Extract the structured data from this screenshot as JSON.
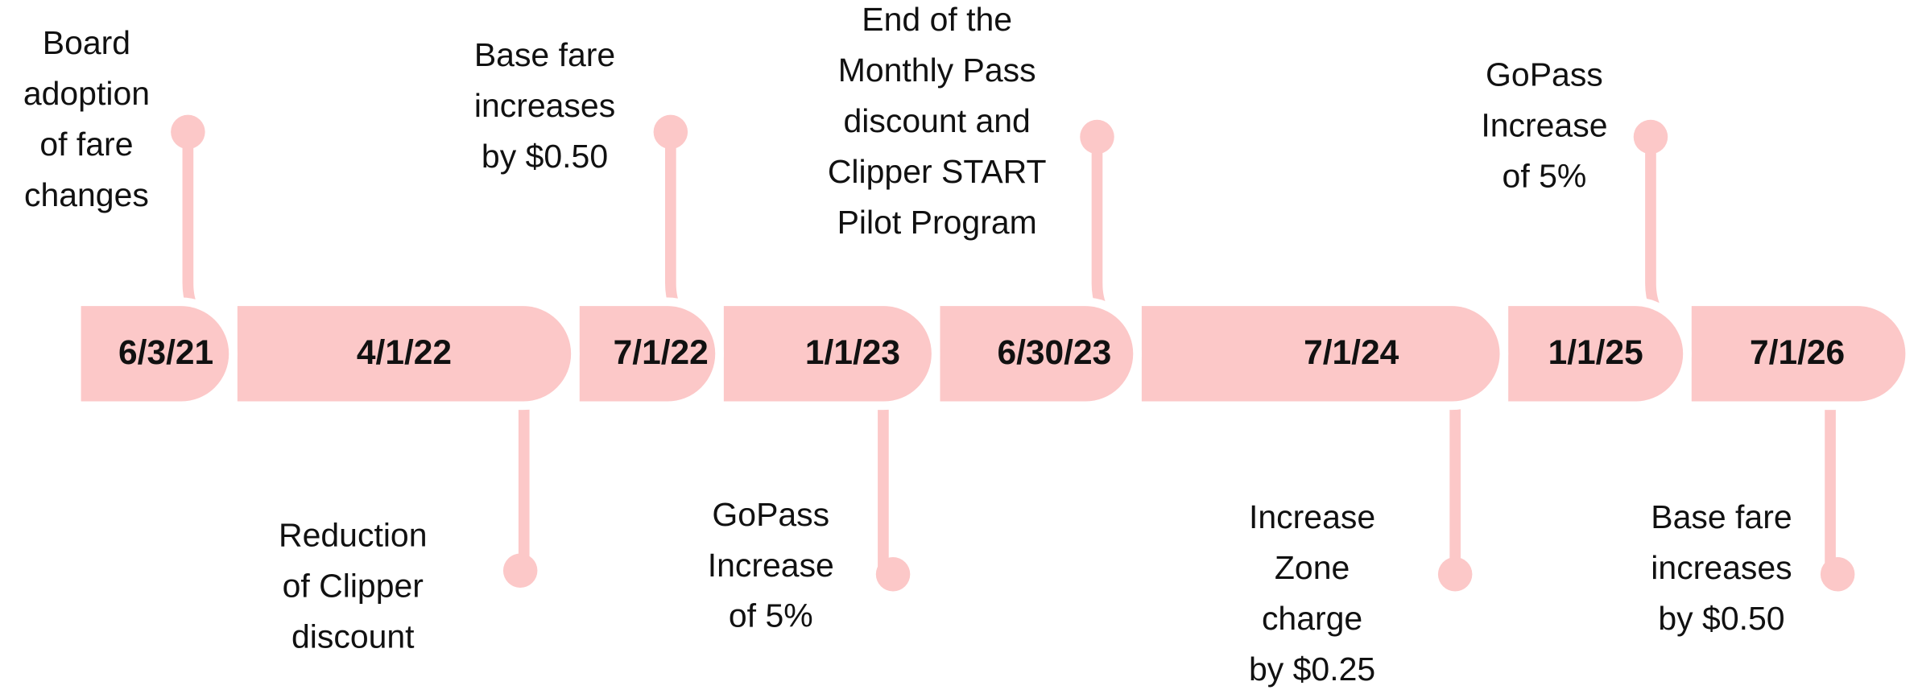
{
  "segments": [
    {
      "date": "6/3/21"
    },
    {
      "date": "4/1/22"
    },
    {
      "date": "7/1/22"
    },
    {
      "date": "1/1/23"
    },
    {
      "date": "6/30/23"
    },
    {
      "date": "7/1/24"
    },
    {
      "date": "1/1/25"
    },
    {
      "date": "7/1/26"
    }
  ],
  "events": [
    {
      "lines": [
        "Board",
        "adoption",
        "of fare",
        "changes"
      ]
    },
    {
      "lines": [
        "Reduction",
        "of Clipper",
        "discount"
      ]
    },
    {
      "lines": [
        "Base fare",
        "increases",
        "by $0.50"
      ]
    },
    {
      "lines": [
        "GoPass",
        "Increase",
        "of 5%"
      ]
    },
    {
      "lines": [
        "End of the",
        "Monthly Pass",
        "discount and",
        "Clipper START",
        "Pilot Program"
      ]
    },
    {
      "lines": [
        "Increase",
        "Zone",
        "charge",
        "by $0.25"
      ]
    },
    {
      "lines": [
        "GoPass",
        "Increase",
        "of 5%"
      ]
    },
    {
      "lines": [
        "Base fare",
        "increases",
        "by $0.50"
      ]
    }
  ]
}
